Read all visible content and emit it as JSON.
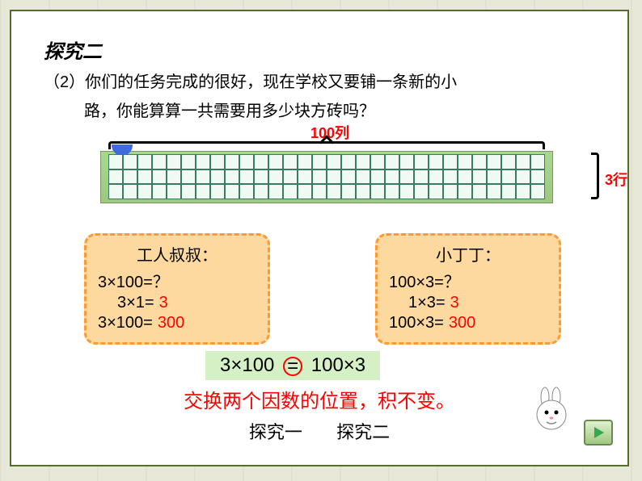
{
  "title": "探究二",
  "prompt_line1": "（2）你们的任务完成的很好，现在学校又要铺一条新的小",
  "prompt_line2": "路，你能算算一共需要用多少块方砖吗？",
  "diagram": {
    "col_label": "100列",
    "row_label": "3行",
    "cols_display": 30,
    "rows_display": 3,
    "grid_border_color": "#3a7a60",
    "grid_bg_color": "#f0faf5",
    "grass_color": "#a8d890",
    "label_color": "#ff0000"
  },
  "box1": {
    "title": "工人叔叔：",
    "line1": "3×100=？",
    "line2_lhs": "3×1=",
    "line2_ans": "3",
    "line3_lhs": "3×100=",
    "line3_ans": "300",
    "bg_color": "#fdd9a0",
    "border_color": "#ff9933"
  },
  "box2": {
    "title": "小丁丁：",
    "line1": "100×3=？",
    "line2_lhs": "1×3=",
    "line2_ans": "3",
    "line3_lhs": "100×3=",
    "line3_ans": "300",
    "bg_color": "#fdd9a0",
    "border_color": "#ff9933"
  },
  "equation": {
    "left": "3×100",
    "op": "=",
    "right": "100×3",
    "bg_color": "#d4f0c4",
    "circle_color": "#ff0000"
  },
  "conclusion": "交换两个因数的位置，积不变。",
  "nav": {
    "item1": "探究一",
    "item2": "探究二"
  },
  "next_btn_color": "#34a853"
}
